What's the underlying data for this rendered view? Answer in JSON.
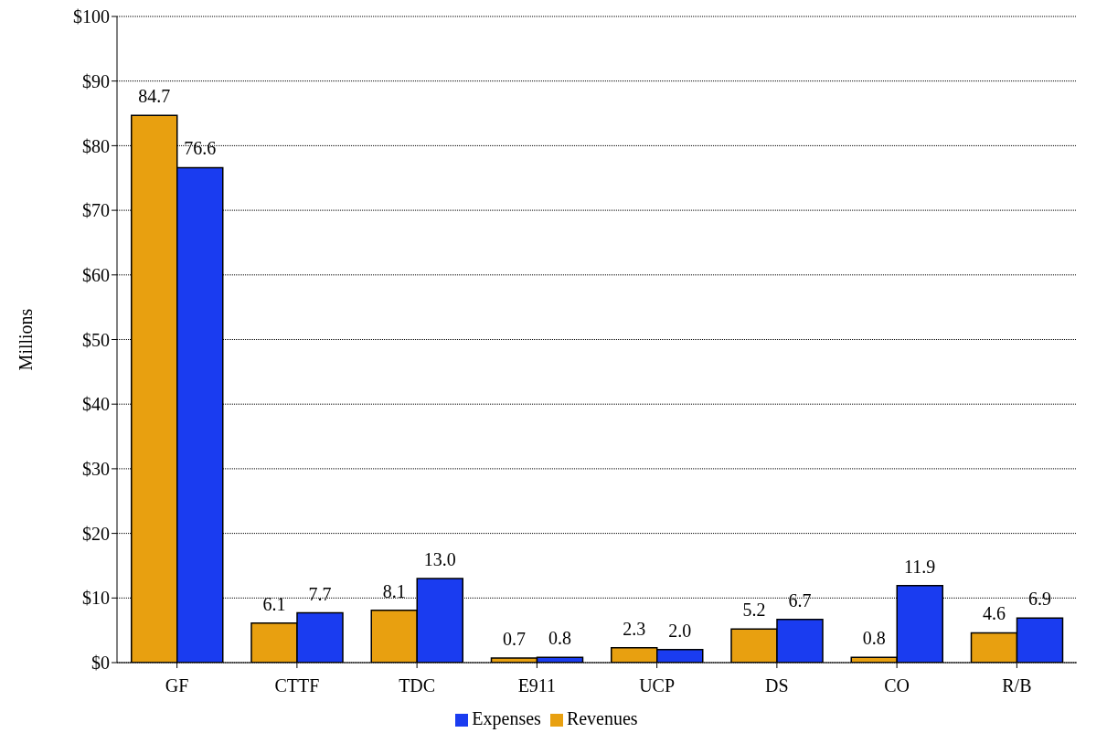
{
  "chart_data": {
    "type": "bar",
    "ylabel": "Millions",
    "categories": [
      "GF",
      "CTTF",
      "TDC",
      "E911",
      "UCP",
      "DS",
      "CO",
      "R/B"
    ],
    "series": [
      {
        "name": "Revenues",
        "color": "#e8a010",
        "values": [
          84.7,
          6.1,
          8.1,
          0.7,
          2.3,
          5.2,
          0.8,
          4.6
        ],
        "value_labels": [
          "84.7",
          "6.1",
          "8.1",
          "0.7",
          "2.3",
          "5.2",
          "0.8",
          "4.6"
        ]
      },
      {
        "name": "Expenses",
        "color": "#1a3cf0",
        "values": [
          76.6,
          7.7,
          13.0,
          0.8,
          2.0,
          6.7,
          11.9,
          6.9
        ],
        "value_labels": [
          "76.6",
          "7.7",
          "13.0",
          "0.8",
          "2.0",
          "6.7",
          "11.9",
          "6.9"
        ]
      }
    ],
    "ylim": [
      0,
      100
    ],
    "yticks": [
      {
        "value": 0,
        "label": "$0"
      },
      {
        "value": 10,
        "label": "$10"
      },
      {
        "value": 20,
        "label": "$20"
      },
      {
        "value": 30,
        "label": "$30"
      },
      {
        "value": 40,
        "label": "$40"
      },
      {
        "value": 50,
        "label": "$50"
      },
      {
        "value": 60,
        "label": "$60"
      },
      {
        "value": 70,
        "label": "$70"
      },
      {
        "value": 80,
        "label": "$80"
      },
      {
        "value": 90,
        "label": "$90"
      },
      {
        "value": 100,
        "label": "$100"
      }
    ],
    "grid": "y",
    "legend": "bottom"
  }
}
